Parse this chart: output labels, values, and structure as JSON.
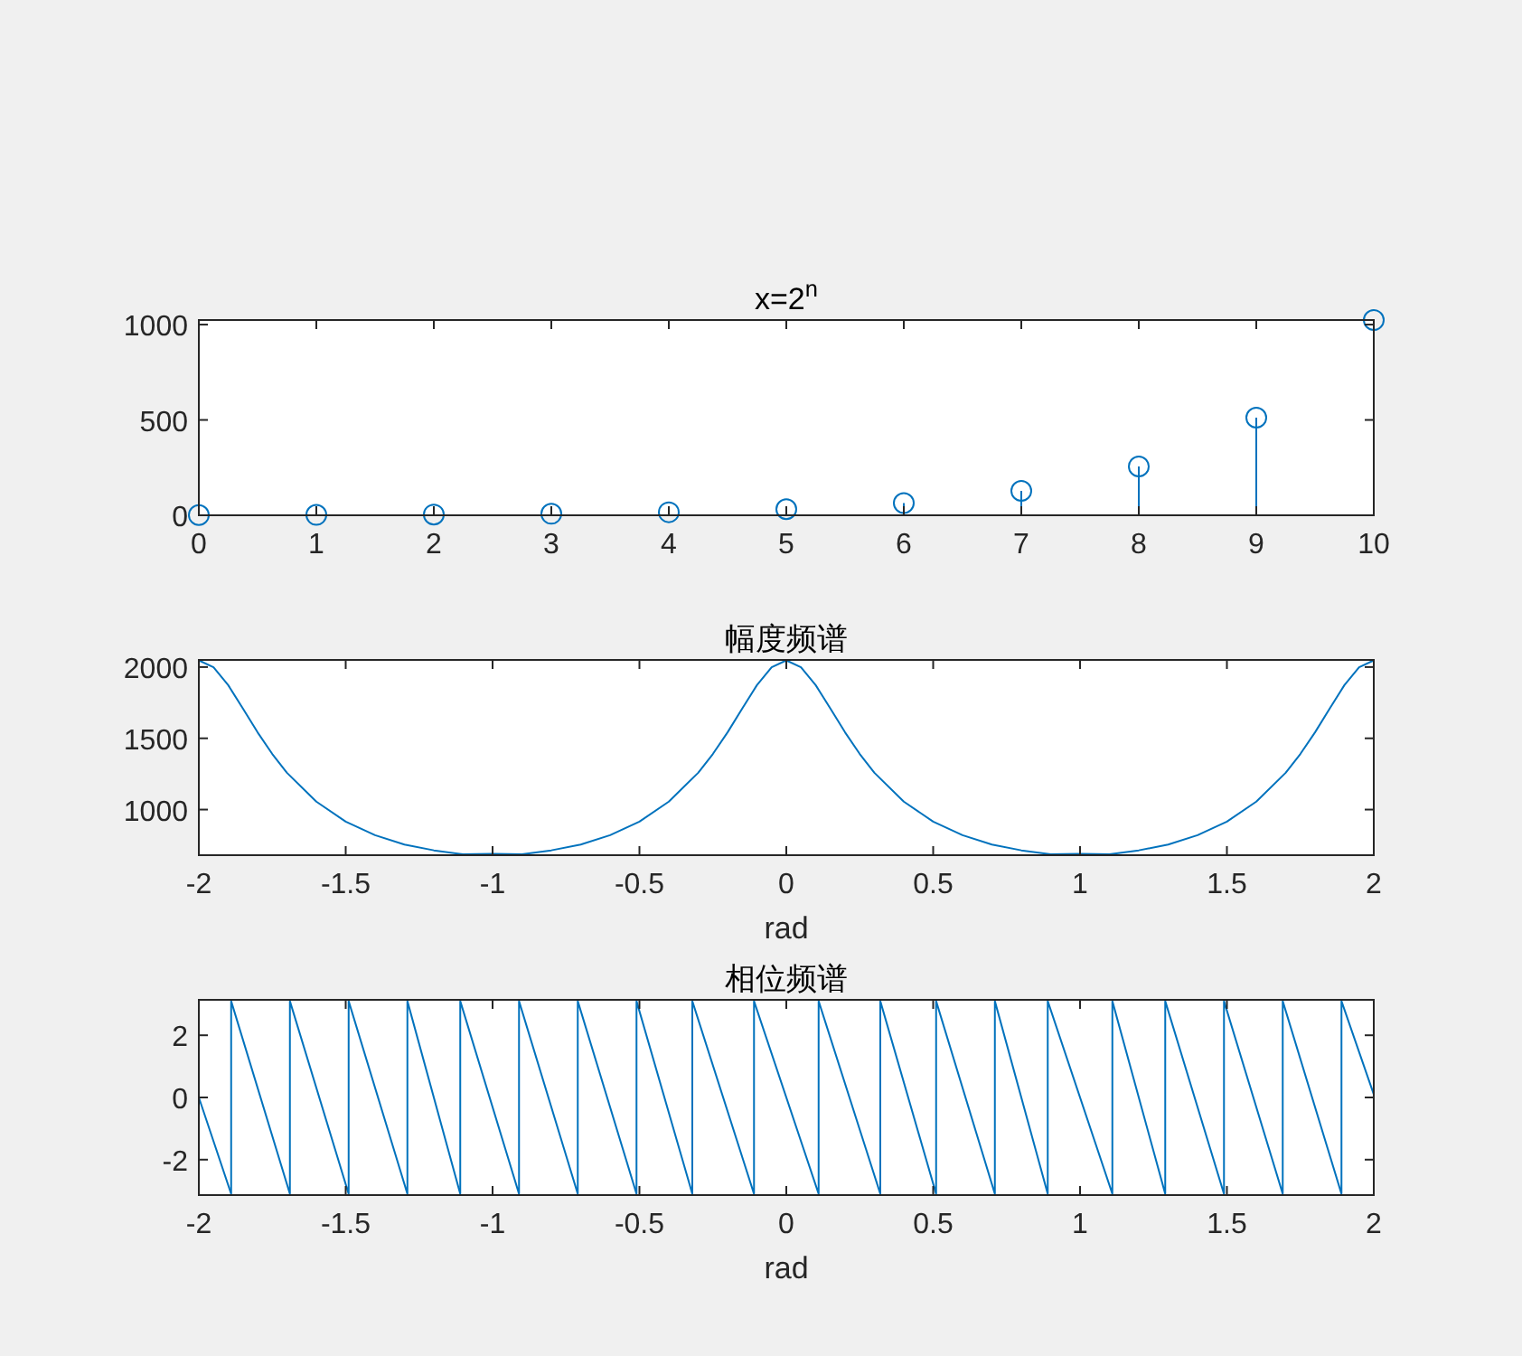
{
  "chart_data": [
    {
      "type": "lollipop",
      "title": "x=2$^{n}$",
      "x": [
        0,
        1,
        2,
        3,
        4,
        5,
        6,
        7,
        8,
        9,
        10
      ],
      "xlim": [
        0,
        10
      ],
      "xticks": [
        0,
        1,
        2,
        3,
        4,
        5,
        6,
        7,
        8,
        9,
        10
      ],
      "ylim": [
        0,
        1024
      ],
      "yticks": [
        0,
        500,
        1000
      ],
      "marker": "circle",
      "series": [
        {
          "color": "#0072bd",
          "values": [
            1,
            2,
            4,
            8,
            16,
            32,
            64,
            128,
            256,
            512,
            1024
          ]
        }
      ]
    },
    {
      "type": "line",
      "title": "幅度频谱",
      "xlabel": "rad",
      "xlim": [
        -2,
        2
      ],
      "xticks": [
        -2,
        -1.5,
        -1,
        -0.5,
        0,
        0.5,
        1,
        1.5,
        2
      ],
      "ylim": [
        680,
        2050
      ],
      "yticks": [
        1000,
        1500,
        2000
      ],
      "x": [
        -2,
        -1.95,
        -1.9,
        -1.85,
        -1.8,
        -1.75,
        -1.7,
        -1.6,
        -1.5,
        -1.4,
        -1.3,
        -1.2,
        -1.1,
        -1,
        -0.9,
        -0.8,
        -0.7,
        -0.6,
        -0.5,
        -0.4,
        -0.3,
        -0.25,
        -0.2,
        -0.15,
        -0.1,
        -0.05,
        0,
        0.05,
        0.1,
        0.15,
        0.2,
        0.25,
        0.3,
        0.4,
        0.5,
        0.6,
        0.7,
        0.8,
        0.9,
        1,
        1.1,
        1.2,
        1.3,
        1.4,
        1.5,
        1.6,
        1.7,
        1.75,
        1.8,
        1.85,
        1.9,
        1.95,
        2
      ],
      "series": [
        {
          "color": "#0072bd",
          "values": [
            2047,
            1999,
            1873,
            1709,
            1542,
            1390,
            1258,
            1056,
            916,
            820,
            755,
            714,
            686,
            690,
            686,
            714,
            755,
            820,
            916,
            1056,
            1258,
            1390,
            1542,
            1709,
            1873,
            1999,
            2047,
            1999,
            1873,
            1709,
            1542,
            1390,
            1258,
            1056,
            916,
            820,
            755,
            714,
            686,
            690,
            686,
            714,
            755,
            820,
            916,
            1056,
            1258,
            1390,
            1542,
            1709,
            1873,
            1999,
            2047
          ]
        }
      ]
    },
    {
      "type": "line",
      "title": "相位频谱",
      "xlabel": "rad",
      "xlim": [
        -2,
        2
      ],
      "xticks": [
        -2,
        -1.5,
        -1,
        -0.5,
        0,
        0.5,
        1,
        1.5,
        2
      ],
      "ylim": [
        -3.14,
        3.14
      ],
      "yticks": [
        -2,
        0,
        2
      ],
      "x": [
        -2,
        -1.89,
        -1.89,
        -1.69,
        -1.69,
        -1.49,
        -1.49,
        -1.29,
        -1.29,
        -1.11,
        -1.11,
        -0.91,
        -0.91,
        -0.71,
        -0.71,
        -0.51,
        -0.51,
        -0.32,
        -0.32,
        -0.11,
        -0.11,
        0.11,
        0.11,
        0.32,
        0.32,
        0.51,
        0.51,
        0.71,
        0.71,
        0.89,
        0.89,
        1.11,
        1.11,
        1.29,
        1.29,
        1.49,
        1.49,
        1.69,
        1.69,
        1.89,
        1.89,
        2
      ],
      "series": [
        {
          "color": "#0072bd",
          "values": [
            0,
            -3.1,
            3.1,
            -3.1,
            3.1,
            -3.1,
            3.1,
            -3.1,
            3.1,
            -3.1,
            3.1,
            -3.1,
            3.1,
            -3.1,
            3.1,
            -3.1,
            3.1,
            -3.1,
            3.1,
            -3.1,
            3.1,
            -3.1,
            3.1,
            -3.1,
            3.1,
            -3.1,
            3.1,
            -3.1,
            3.1,
            -3.1,
            3.1,
            -3.1,
            3.1,
            -3.1,
            3.1,
            -3.1,
            3.1,
            -3.1,
            3.1,
            -3.1,
            3.1,
            0.1
          ]
        }
      ]
    }
  ]
}
